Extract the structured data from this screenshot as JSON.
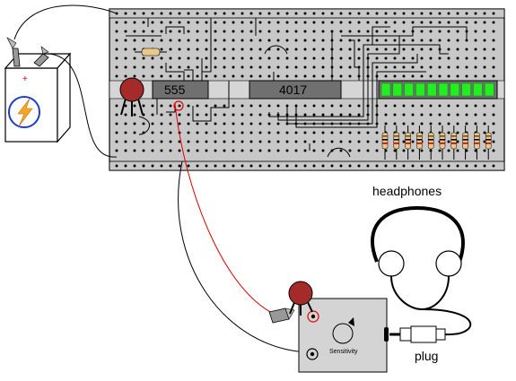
{
  "labels": {
    "timer_chip": "555",
    "counter_chip": "4017",
    "headphones": "headphones",
    "plug": "plug",
    "sensitivity": "Sensitivity",
    "battery_positive": "+",
    "battery_negative": "-"
  },
  "colors": {
    "breadboard": "#c8c8c8",
    "breadboard_border": "#000000",
    "chip_body": "#707070",
    "pot_knob": "#a52a2a",
    "led_bar": "#22ee22",
    "probe_wire": "#e00000",
    "wire": "#000000",
    "battery_fill": "#ffffff",
    "bolt": "#f5a623",
    "bolt_circle": "#1a3fcc",
    "sensitivity_box": "#d4d4d4"
  },
  "counts": {
    "led_segments": 10,
    "resistors": 10
  }
}
